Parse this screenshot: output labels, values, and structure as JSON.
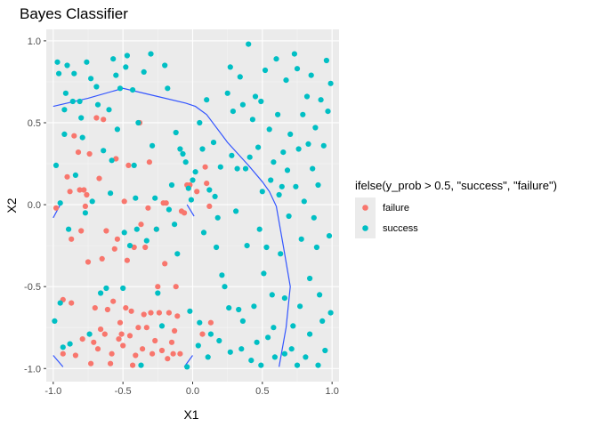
{
  "chart_data": {
    "type": "scatter",
    "title": "Bayes Classifier",
    "xlabel": "X1",
    "ylabel": "X2",
    "xlim": [
      -1.05,
      1.05
    ],
    "ylim": [
      -1.08,
      1.07
    ],
    "grid": true,
    "panel_background": "#ebebeb",
    "xticks": [
      -1.0,
      -0.5,
      0.0,
      0.5,
      1.0
    ],
    "xtick_labels": [
      "-1.0",
      "-0.5",
      "0.0",
      "0.5",
      "1.0"
    ],
    "yticks": [
      -1.0,
      -0.5,
      0.0,
      0.5,
      1.0
    ],
    "ytick_labels": [
      "-1.0",
      "-0.5",
      "0.0",
      "0.5",
      "1.0"
    ],
    "legend": {
      "title": "ifelse(y_prob > 0.5, \"success\", \"failure\")",
      "placement": "right",
      "entries": [
        {
          "label": "failure",
          "color": "#f8766d"
        },
        {
          "label": "success",
          "color": "#00bfc4"
        }
      ]
    },
    "series": [
      {
        "name": "failure",
        "color": "#f8766d",
        "points": [
          [
            -0.98,
            -0.02
          ],
          [
            -0.93,
            -0.58
          ],
          [
            -0.93,
            -0.91
          ],
          [
            -0.9,
            0.17
          ],
          [
            -0.88,
            0.08
          ],
          [
            -0.87,
            -0.21
          ],
          [
            -0.87,
            -0.6
          ],
          [
            -0.85,
            0.42
          ],
          [
            -0.84,
            -0.92
          ],
          [
            -0.82,
            0.32
          ],
          [
            -0.81,
            0.09
          ],
          [
            -0.8,
            -0.16
          ],
          [
            -0.79,
            -0.82
          ],
          [
            -0.78,
            0.09
          ],
          [
            -0.77,
            -0.01
          ],
          [
            -0.76,
            0.06
          ],
          [
            -0.75,
            -0.35
          ],
          [
            -0.74,
            0.31
          ],
          [
            -0.73,
            -0.97
          ],
          [
            -0.71,
            -0.84
          ],
          [
            -0.7,
            -0.63
          ],
          [
            -0.69,
            0.53
          ],
          [
            -0.68,
            -0.88
          ],
          [
            -0.67,
            0.16
          ],
          [
            -0.66,
            -0.76
          ],
          [
            -0.65,
            -0.33
          ],
          [
            -0.64,
            0.52
          ],
          [
            -0.63,
            -0.79
          ],
          [
            -0.62,
            -0.16
          ],
          [
            -0.61,
            -0.64
          ],
          [
            -0.59,
            -0.97
          ],
          [
            -0.58,
            -0.91
          ],
          [
            -0.57,
            -0.59
          ],
          [
            -0.56,
            -0.27
          ],
          [
            -0.55,
            0.28
          ],
          [
            -0.54,
            -0.21
          ],
          [
            -0.53,
            -0.82
          ],
          [
            -0.52,
            -0.72
          ],
          [
            -0.51,
            -0.79
          ],
          [
            -0.5,
            -0.86
          ],
          [
            -0.49,
            0.02
          ],
          [
            -0.48,
            -0.63
          ],
          [
            -0.47,
            -0.34
          ],
          [
            -0.46,
            0.24
          ],
          [
            -0.45,
            -0.8
          ],
          [
            -0.44,
            -0.65
          ],
          [
            -0.43,
            -0.98
          ],
          [
            -0.42,
            -0.26
          ],
          [
            -0.41,
            -0.92
          ],
          [
            -0.39,
            -0.75
          ],
          [
            -0.38,
            0.5
          ],
          [
            -0.37,
            -0.12
          ],
          [
            -0.36,
            -0.88
          ],
          [
            -0.35,
            -0.67
          ],
          [
            -0.34,
            -0.26
          ],
          [
            -0.33,
            -0.75
          ],
          [
            -0.32,
            -0.02
          ],
          [
            -0.31,
            0.26
          ],
          [
            -0.3,
            -0.66
          ],
          [
            -0.29,
            -0.91
          ],
          [
            -0.27,
            -0.83
          ],
          [
            -0.26,
            -0.15
          ],
          [
            -0.25,
            -0.5
          ],
          [
            -0.24,
            -0.66
          ],
          [
            -0.22,
            -0.89
          ],
          [
            -0.21,
            0.01
          ],
          [
            -0.2,
            -0.36
          ],
          [
            -0.19,
            0.01
          ],
          [
            -0.18,
            -0.94
          ],
          [
            -0.17,
            -0.66
          ],
          [
            -0.15,
            -0.84
          ],
          [
            -0.14,
            -0.91
          ],
          [
            -0.13,
            -0.77
          ],
          [
            -0.12,
            -0.5
          ],
          [
            -0.11,
            -0.68
          ],
          [
            -0.09,
            -0.91
          ],
          [
            -0.08,
            -0.04
          ],
          [
            -0.06,
            -0.05
          ],
          [
            -0.04,
            0.12
          ],
          [
            -0.02,
            0.12
          ],
          [
            0.03,
            0.08
          ],
          [
            0.07,
            -0.79
          ],
          [
            0.09,
            0.23
          ],
          [
            0.1,
            0.13
          ],
          [
            0.12,
            -0.01
          ],
          [
            0.13,
            -0.72
          ]
        ]
      },
      {
        "name": "success",
        "color": "#00bfc4",
        "points": [
          [
            -0.99,
            -0.71
          ],
          [
            -0.98,
            0.24
          ],
          [
            -0.97,
            0.87
          ],
          [
            -0.96,
            0.8
          ],
          [
            -0.95,
            -0.6
          ],
          [
            -0.95,
            0.01
          ],
          [
            -0.93,
            -0.87
          ],
          [
            -0.92,
            0.58
          ],
          [
            -0.92,
            0.43
          ],
          [
            -0.91,
            0.68
          ],
          [
            -0.9,
            0.85
          ],
          [
            -0.89,
            -0.15
          ],
          [
            -0.88,
            -0.85
          ],
          [
            -0.86,
            0.63
          ],
          [
            -0.85,
            0.8
          ],
          [
            -0.84,
            0.18
          ],
          [
            -0.81,
            0.63
          ],
          [
            -0.8,
            0.53
          ],
          [
            -0.79,
            0.41
          ],
          [
            -0.77,
            -0.05
          ],
          [
            -0.76,
            0.87
          ],
          [
            -0.74,
            -0.79
          ],
          [
            -0.73,
            0.77
          ],
          [
            -0.72,
            0.02
          ],
          [
            -0.69,
            0.72
          ],
          [
            -0.68,
            0.61
          ],
          [
            -0.66,
            -0.54
          ],
          [
            -0.64,
            0.33
          ],
          [
            -0.62,
            -0.51
          ],
          [
            -0.6,
            0.58
          ],
          [
            -0.59,
            0.07
          ],
          [
            -0.58,
            0.27
          ],
          [
            -0.57,
            0.89
          ],
          [
            -0.55,
            0.79
          ],
          [
            -0.54,
            0.46
          ],
          [
            -0.52,
            0.71
          ],
          [
            -0.5,
            -0.51
          ],
          [
            -0.49,
            -0.17
          ],
          [
            -0.48,
            0.84
          ],
          [
            -0.47,
            0.91
          ],
          [
            -0.45,
            -0.25
          ],
          [
            -0.43,
            0.7
          ],
          [
            -0.42,
            0.24
          ],
          [
            -0.41,
            0.04
          ],
          [
            -0.4,
            -0.15
          ],
          [
            -0.39,
            0.5
          ],
          [
            -0.37,
            -0.98
          ],
          [
            -0.35,
            0.81
          ],
          [
            -0.33,
            -0.22
          ],
          [
            -0.3,
            0.92
          ],
          [
            -0.29,
            0.36
          ],
          [
            -0.27,
            0.04
          ],
          [
            -0.26,
            -0.15
          ],
          [
            -0.25,
            -0.54
          ],
          [
            -0.22,
            -0.74
          ],
          [
            -0.2,
            0.85
          ],
          [
            -0.18,
            0.71
          ],
          [
            -0.17,
            -0.03
          ],
          [
            -0.15,
            0.12
          ],
          [
            -0.13,
            -0.12
          ],
          [
            -0.12,
            0.44
          ],
          [
            -0.11,
            -0.3
          ],
          [
            -0.09,
            0.34
          ],
          [
            -0.07,
            0.31
          ],
          [
            -0.05,
            0.26
          ],
          [
            -0.04,
            -0.99
          ],
          [
            -0.03,
            0.1
          ],
          [
            -0.02,
            -0.65
          ],
          [
            -0.01,
            0.03
          ],
          [
            0.0,
            0.15
          ],
          [
            0.02,
            0.2
          ],
          [
            0.04,
            -0.86
          ],
          [
            0.05,
            0.5
          ],
          [
            0.07,
            0.34
          ],
          [
            0.08,
            -0.17
          ],
          [
            0.1,
            0.64
          ],
          [
            0.12,
            0.09
          ],
          [
            0.13,
            -0.79
          ],
          [
            0.15,
            0.38
          ],
          [
            0.16,
            0.05
          ],
          [
            0.17,
            -0.26
          ],
          [
            0.18,
            -0.08
          ],
          [
            0.2,
            0.23
          ],
          [
            0.21,
            -0.43
          ],
          [
            0.23,
            -0.5
          ],
          [
            0.25,
            0.68
          ],
          [
            0.26,
            -0.63
          ],
          [
            0.27,
            0.84
          ],
          [
            0.28,
            0.3
          ],
          [
            0.29,
            0.57
          ],
          [
            0.31,
            -0.04
          ],
          [
            0.32,
            0.22
          ],
          [
            0.33,
            -0.64
          ],
          [
            0.34,
            0.78
          ],
          [
            0.35,
            -0.88
          ],
          [
            0.36,
            0.61
          ],
          [
            0.38,
            0.22
          ],
          [
            0.39,
            -0.25
          ],
          [
            0.4,
            0.98
          ],
          [
            0.41,
            0.29
          ],
          [
            0.42,
            -0.95
          ],
          [
            0.43,
            0.52
          ],
          [
            0.44,
            -0.62
          ],
          [
            0.45,
            0.66
          ],
          [
            0.46,
            -0.84
          ],
          [
            0.47,
            0.35
          ],
          [
            0.48,
            -0.15
          ],
          [
            0.49,
            0.63
          ],
          [
            0.5,
            0.08
          ],
          [
            0.51,
            -0.42
          ],
          [
            0.52,
            0.82
          ],
          [
            0.53,
            -0.26
          ],
          [
            0.54,
            -0.81
          ],
          [
            0.55,
            0.46
          ],
          [
            0.56,
            0.15
          ],
          [
            0.57,
            -0.55
          ],
          [
            0.58,
            0.26
          ],
          [
            0.59,
            -0.93
          ],
          [
            0.6,
            0.89
          ],
          [
            0.61,
            0.55
          ],
          [
            0.62,
            0.06
          ],
          [
            0.63,
            -0.3
          ],
          [
            0.64,
            0.11
          ],
          [
            0.65,
            0.32
          ],
          [
            0.66,
            -0.57
          ],
          [
            0.67,
            0.76
          ],
          [
            0.68,
            0.21
          ],
          [
            0.69,
            -0.07
          ],
          [
            0.7,
            0.43
          ],
          [
            0.71,
            -0.88
          ],
          [
            0.72,
            -0.74
          ],
          [
            0.73,
            0.92
          ],
          [
            0.74,
            0.11
          ],
          [
            0.75,
            0.83
          ],
          [
            0.76,
            0.34
          ],
          [
            0.77,
            -0.62
          ],
          [
            0.78,
            -0.21
          ],
          [
            0.79,
            0.55
          ],
          [
            0.8,
            0.02
          ],
          [
            0.81,
            -0.93
          ],
          [
            0.82,
            0.66
          ],
          [
            0.83,
            0.37
          ],
          [
            0.84,
            -0.45
          ],
          [
            0.85,
            0.79
          ],
          [
            0.86,
            0.22
          ],
          [
            0.87,
            -0.08
          ],
          [
            0.88,
            0.47
          ],
          [
            0.89,
            -0.26
          ],
          [
            0.9,
            0.12
          ],
          [
            0.91,
            -0.55
          ],
          [
            0.92,
            0.64
          ],
          [
            0.93,
            -0.71
          ],
          [
            0.94,
            0.36
          ],
          [
            0.95,
            -0.89
          ],
          [
            0.96,
            0.88
          ],
          [
            0.97,
            0.57
          ],
          [
            0.98,
            -0.19
          ],
          [
            0.99,
            0.74
          ],
          [
            0.99,
            -0.66
          ],
          [
            0.9,
            -0.98
          ],
          [
            0.84,
            -0.79
          ],
          [
            0.75,
            -0.98
          ],
          [
            0.66,
            -0.91
          ],
          [
            0.58,
            -0.75
          ],
          [
            0.49,
            -0.98
          ],
          [
            0.36,
            -0.71
          ],
          [
            0.27,
            -0.9
          ],
          [
            0.19,
            -0.83
          ],
          [
            0.11,
            -0.93
          ],
          [
            0.05,
            -0.72
          ]
        ]
      }
    ],
    "boundary_lines": [
      {
        "color": "#3355ff",
        "points": [
          [
            -1.0,
            0.6
          ],
          [
            -0.75,
            0.65
          ],
          [
            -0.5,
            0.71
          ],
          [
            -0.25,
            0.66
          ],
          [
            -0.05,
            0.62
          ],
          [
            0.02,
            0.6
          ],
          [
            0.1,
            0.55
          ],
          [
            0.25,
            0.38
          ],
          [
            0.4,
            0.24
          ],
          [
            0.5,
            0.14
          ],
          [
            0.55,
            0.08
          ],
          [
            0.6,
            -0.01
          ],
          [
            0.65,
            -0.25
          ],
          [
            0.7,
            -0.5
          ],
          [
            0.67,
            -0.75
          ],
          [
            0.62,
            -0.99
          ]
        ]
      },
      {
        "color": "#3355ff",
        "points": [
          [
            -1.0,
            -0.08
          ],
          [
            -0.95,
            0.0
          ]
        ]
      },
      {
        "color": "#3355ff",
        "points": [
          [
            -0.04,
            0.0
          ],
          [
            0.01,
            -0.07
          ]
        ]
      },
      {
        "color": "#3355ff",
        "points": [
          [
            -1.0,
            -0.92
          ],
          [
            -0.93,
            -0.99
          ]
        ]
      },
      {
        "color": "#3355ff",
        "points": [
          [
            -0.06,
            -0.99
          ],
          [
            0.0,
            -0.92
          ]
        ]
      }
    ]
  }
}
